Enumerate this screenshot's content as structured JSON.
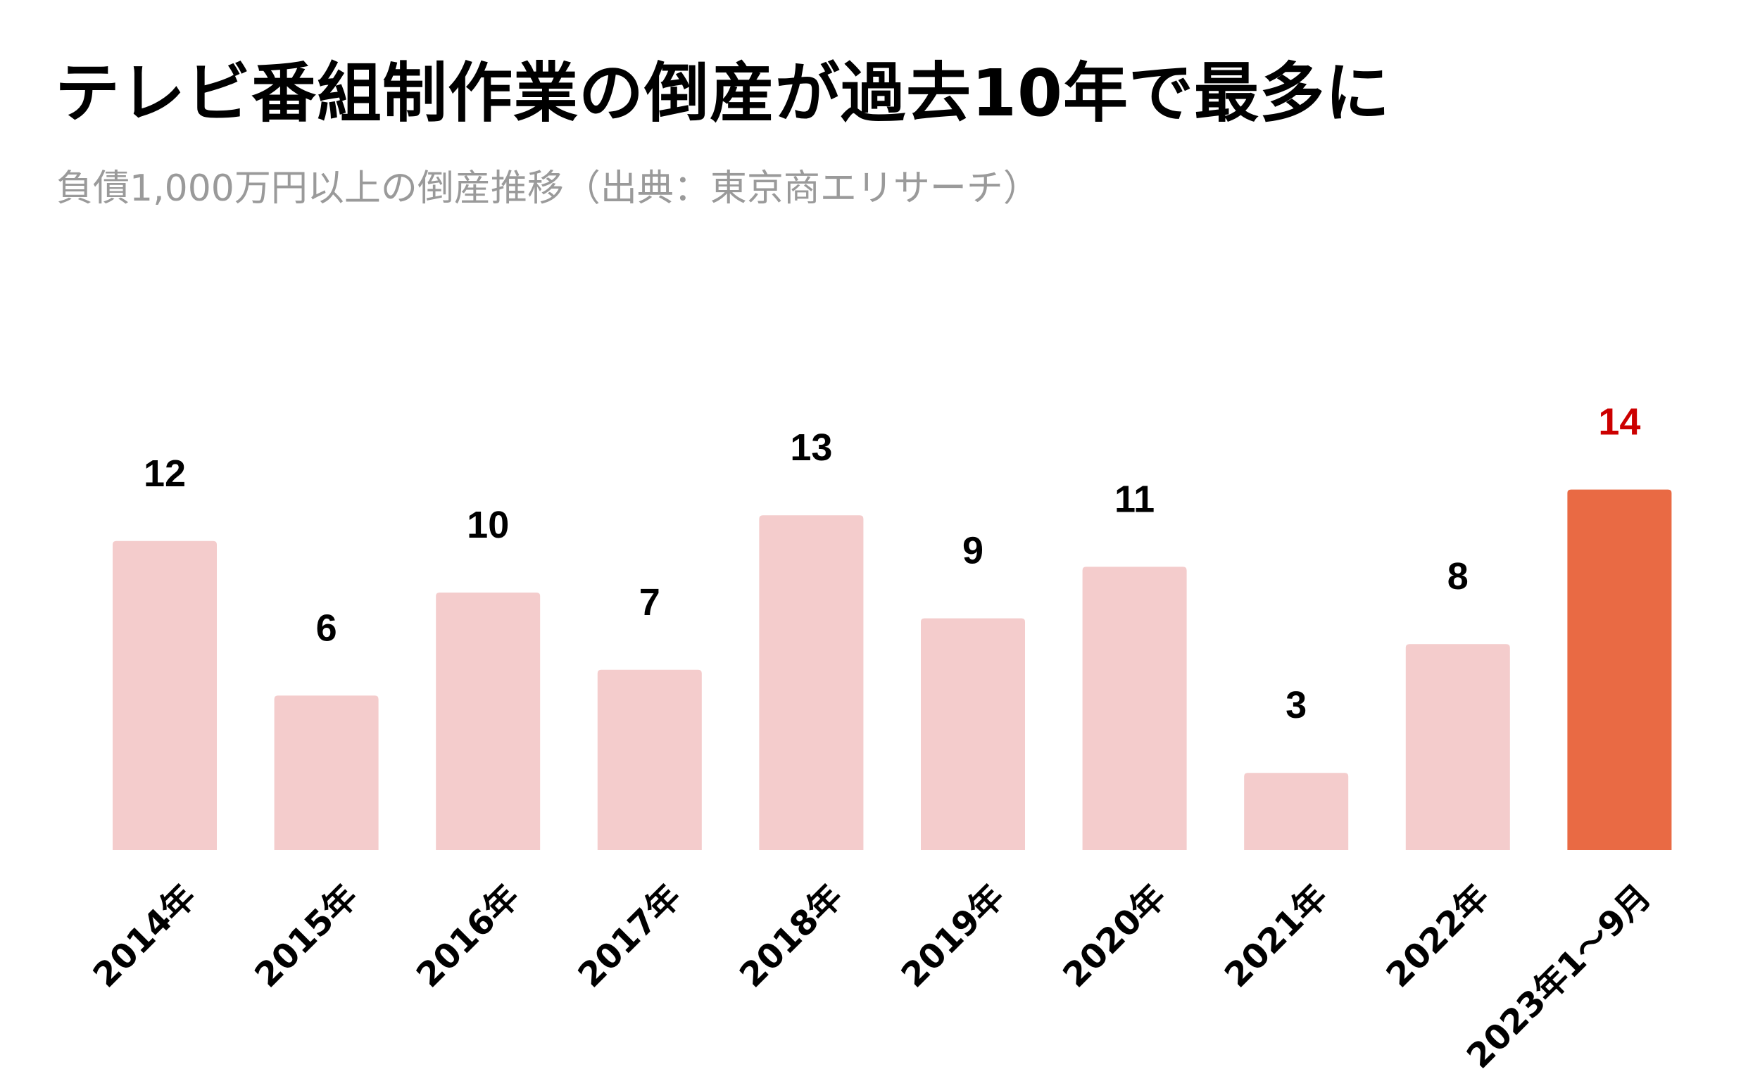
{
  "title": "テレビ番組制作業の倒産が過去10年で最多に",
  "subtitle": "負債1,000万円以上の倒産推移（出典：東京商エリサーチ）",
  "colors": {
    "bar_default": "#f4cccc",
    "bar_highlight": "#e96a44",
    "label_default": "#000000",
    "label_highlight": "#cc0000"
  },
  "chart_data": {
    "type": "bar",
    "title": "",
    "xlabel": "",
    "ylabel": "",
    "categories": [
      "2014年",
      "2015年",
      "2016年",
      "2017年",
      "2018年",
      "2019年",
      "2020年",
      "2021年",
      "2022年",
      "2023年1～9月"
    ],
    "values": [
      12,
      6,
      10,
      7,
      13,
      9,
      11,
      3,
      8,
      14
    ],
    "highlight_index": 9,
    "ylim": [
      0,
      14
    ],
    "grid": false,
    "legend": "none",
    "data_labels": true
  }
}
